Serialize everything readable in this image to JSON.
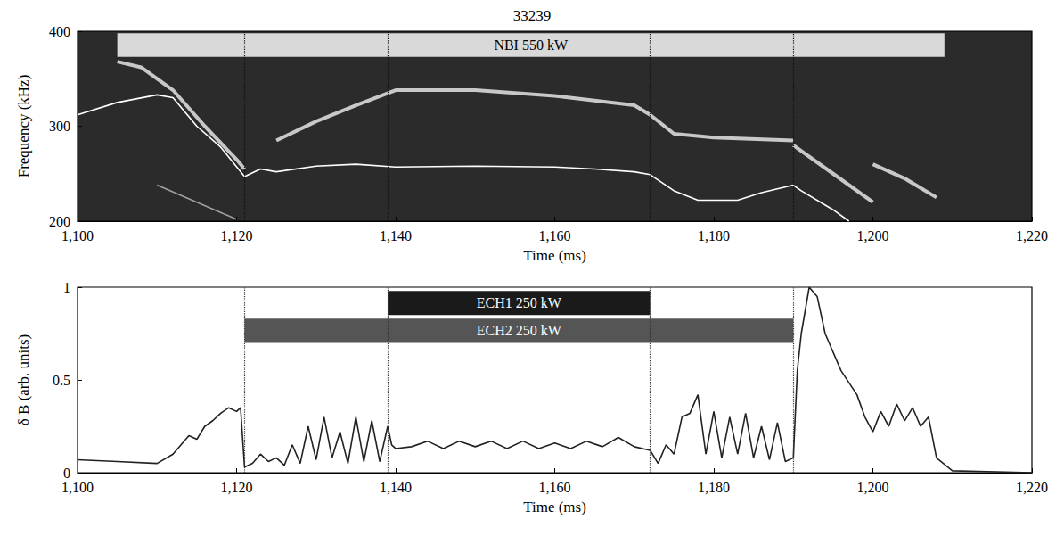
{
  "chart_data": [
    {
      "type": "line",
      "title": "33239",
      "x_label": "Time (ms)",
      "y_label": "Frequency (kHz)",
      "xlim": [
        1100,
        1220
      ],
      "xticks": [
        1100,
        1120,
        1140,
        1160,
        1180,
        1200,
        1220
      ],
      "ylim": [
        200,
        400
      ],
      "yticks": [
        200,
        300,
        400
      ],
      "grid": false,
      "series": [
        {
          "color": "#c8c8c8",
          "line_style": "thick",
          "x": [
            1105,
            1108,
            1112,
            1116,
            1120,
            1121
          ],
          "values": [
            368,
            362,
            338,
            300,
            265,
            255
          ]
        },
        {
          "color": "#a0a0a0",
          "line_style": "solid",
          "x": [
            1110,
            1115,
            1120
          ],
          "values": [
            238,
            220,
            202
          ]
        },
        {
          "color": "#c8c8c8",
          "line_style": "thick",
          "x": [
            1125,
            1130,
            1135,
            1140,
            1150,
            1160,
            1170,
            1172,
            1175,
            1180,
            1190
          ],
          "values": [
            285,
            305,
            322,
            338,
            338,
            332,
            322,
            312,
            292,
            288,
            285
          ]
        },
        {
          "color": "#c8c8c8",
          "line_style": "thick",
          "x": [
            1190,
            1195,
            1200
          ],
          "values": [
            280,
            250,
            220
          ]
        },
        {
          "color": "#c8c8c8",
          "line_style": "thick",
          "x": [
            1200,
            1204,
            1208
          ],
          "values": [
            260,
            245,
            225
          ]
        },
        {
          "color": "#ffffff",
          "line_style": "solid",
          "x": [
            1100,
            1105,
            1110,
            1112,
            1115,
            1118,
            1121,
            1123,
            1125,
            1130,
            1135,
            1140,
            1150,
            1160,
            1165,
            1170,
            1172,
            1175,
            1178,
            1183,
            1186,
            1190,
            1191,
            1195,
            1197
          ],
          "values": [
            312,
            325,
            333,
            330,
            300,
            278,
            247,
            255,
            252,
            258,
            260,
            257,
            258,
            257,
            255,
            252,
            249,
            232,
            222,
            222,
            230,
            238,
            232,
            212,
            200
          ]
        }
      ],
      "bands": [
        {
          "label": "NBI 550 kW",
          "x": [
            1105,
            1209
          ],
          "y": [
            373,
            398
          ],
          "color": "#d9d9d9"
        }
      ],
      "vlines": [
        1121,
        1139,
        1172,
        1190
      ]
    },
    {
      "type": "line",
      "x_label": "Time (ms)",
      "y_label": "δ B (arb. units)",
      "xlim": [
        1100,
        1220
      ],
      "xticks": [
        1100,
        1120,
        1140,
        1160,
        1180,
        1200,
        1220
      ],
      "ylim": [
        0,
        1
      ],
      "yticks": [
        0,
        0.5,
        1
      ],
      "grid": false,
      "series": [
        {
          "color": "#222222",
          "line_style": "solid",
          "x": [
            1100,
            1105,
            1110,
            1112,
            1114,
            1115,
            1116,
            1117,
            1118,
            1119,
            1120,
            1120.5,
            1121,
            1122,
            1123,
            1124,
            1125,
            1126,
            1127,
            1128,
            1129,
            1130,
            1131,
            1132,
            1133,
            1134,
            1135,
            1136,
            1137,
            1138,
            1139,
            1139.5,
            1140,
            1142,
            1144,
            1146,
            1148,
            1150,
            1152,
            1154,
            1156,
            1158,
            1160,
            1162,
            1164,
            1166,
            1168,
            1170,
            1172,
            1173,
            1174,
            1175,
            1176,
            1177,
            1178,
            1179,
            1180,
            1181,
            1182,
            1183,
            1184,
            1185,
            1186,
            1187,
            1188,
            1189,
            1190,
            1190.5,
            1191,
            1192,
            1193,
            1194,
            1196,
            1198,
            1199,
            1200,
            1201,
            1202,
            1203,
            1204,
            1205,
            1206,
            1207,
            1208,
            1210,
            1220
          ],
          "values": [
            0.07,
            0.06,
            0.05,
            0.1,
            0.2,
            0.18,
            0.25,
            0.28,
            0.32,
            0.35,
            0.33,
            0.35,
            0.03,
            0.05,
            0.1,
            0.06,
            0.08,
            0.04,
            0.15,
            0.05,
            0.25,
            0.07,
            0.3,
            0.08,
            0.22,
            0.05,
            0.3,
            0.06,
            0.28,
            0.06,
            0.25,
            0.15,
            0.13,
            0.14,
            0.17,
            0.13,
            0.17,
            0.14,
            0.17,
            0.13,
            0.17,
            0.13,
            0.16,
            0.13,
            0.17,
            0.14,
            0.19,
            0.14,
            0.12,
            0.05,
            0.15,
            0.1,
            0.3,
            0.32,
            0.42,
            0.1,
            0.33,
            0.08,
            0.3,
            0.1,
            0.32,
            0.08,
            0.25,
            0.07,
            0.27,
            0.06,
            0.08,
            0.55,
            0.75,
            1.0,
            0.95,
            0.75,
            0.55,
            0.42,
            0.3,
            0.22,
            0.33,
            0.25,
            0.37,
            0.28,
            0.35,
            0.25,
            0.3,
            0.08,
            0.01,
            0.0
          ]
        }
      ],
      "bands": [
        {
          "label": "ECH1 250 kW",
          "x": [
            1139,
            1172
          ],
          "y": [
            0.85,
            0.98
          ],
          "color": "#1a1a1a"
        },
        {
          "label": "ECH2 250 kW",
          "x": [
            1121,
            1190
          ],
          "y": [
            0.7,
            0.83
          ],
          "color": "#555555"
        }
      ],
      "vlines": [
        1121,
        1139,
        1172,
        1190
      ]
    }
  ]
}
